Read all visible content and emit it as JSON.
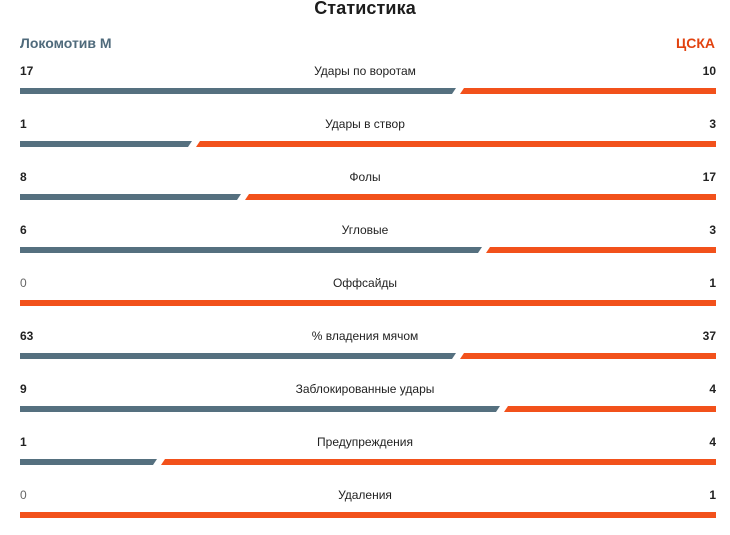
{
  "title": "Статистика",
  "teams": {
    "home": "Локомотив М",
    "away": "ЦСКА"
  },
  "colors": {
    "home": "#55707f",
    "away": "#f2511b",
    "home_text": "#4f6a7b",
    "away_text": "#e2420f"
  },
  "stats": [
    {
      "label": "Удары по воротам",
      "home": "17",
      "away": "10"
    },
    {
      "label": "Удары в створ",
      "home": "1",
      "away": "3"
    },
    {
      "label": "Фолы",
      "home": "8",
      "away": "17"
    },
    {
      "label": "Угловые",
      "home": "6",
      "away": "3"
    },
    {
      "label": "Оффсайды",
      "home": "0",
      "away": "1"
    },
    {
      "label": "% владения мячом",
      "home": "63",
      "away": "37"
    },
    {
      "label": "Заблокированные удары",
      "home": "9",
      "away": "4"
    },
    {
      "label": "Предупреждения",
      "home": "1",
      "away": "4"
    },
    {
      "label": "Удаления",
      "home": "0",
      "away": "1"
    }
  ]
}
